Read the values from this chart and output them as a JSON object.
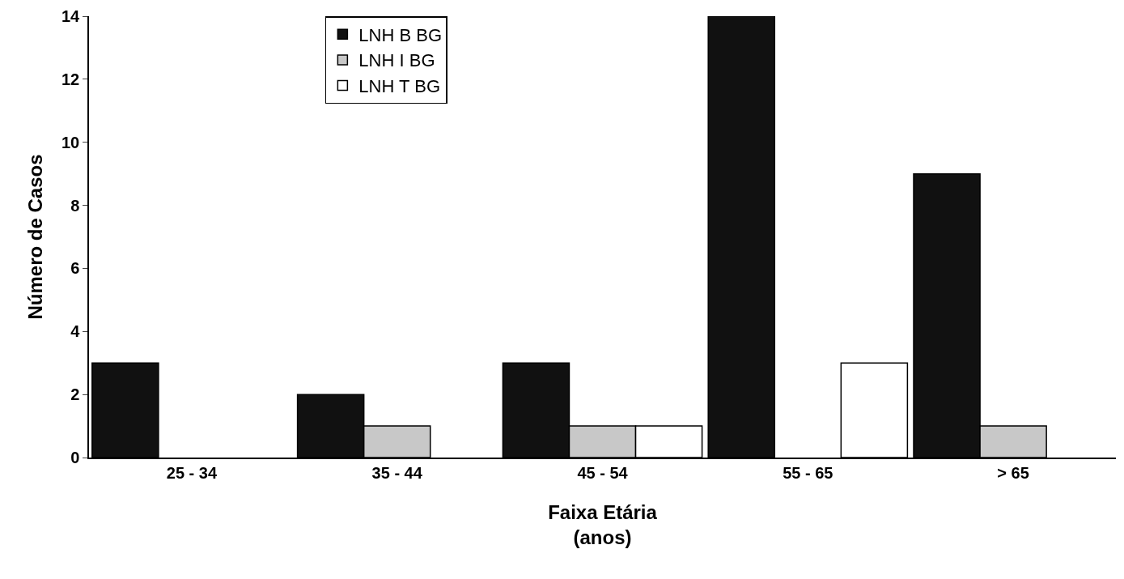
{
  "chart_data": {
    "type": "bar",
    "xlabel": "Faixa Etária\n(anos)",
    "ylabel": "Número de Casos",
    "categories": [
      "25 - 34",
      "35 - 44",
      "45 - 54",
      "55 - 65",
      "> 65"
    ],
    "series": [
      {
        "name": "LNH B BG",
        "color": "#111111",
        "values": [
          3,
          2,
          3,
          14,
          9
        ]
      },
      {
        "name": "LNH I BG",
        "color": "#c8c8c8",
        "values": [
          0,
          1,
          1,
          0,
          1
        ]
      },
      {
        "name": "LNH T BG",
        "color": "#ffffff",
        "values": [
          0,
          0,
          1,
          3,
          0
        ]
      }
    ],
    "ylim": [
      0,
      14
    ],
    "yticks": [
      0,
      2,
      4,
      6,
      8,
      10,
      12,
      14
    ],
    "legend": "top left"
  }
}
